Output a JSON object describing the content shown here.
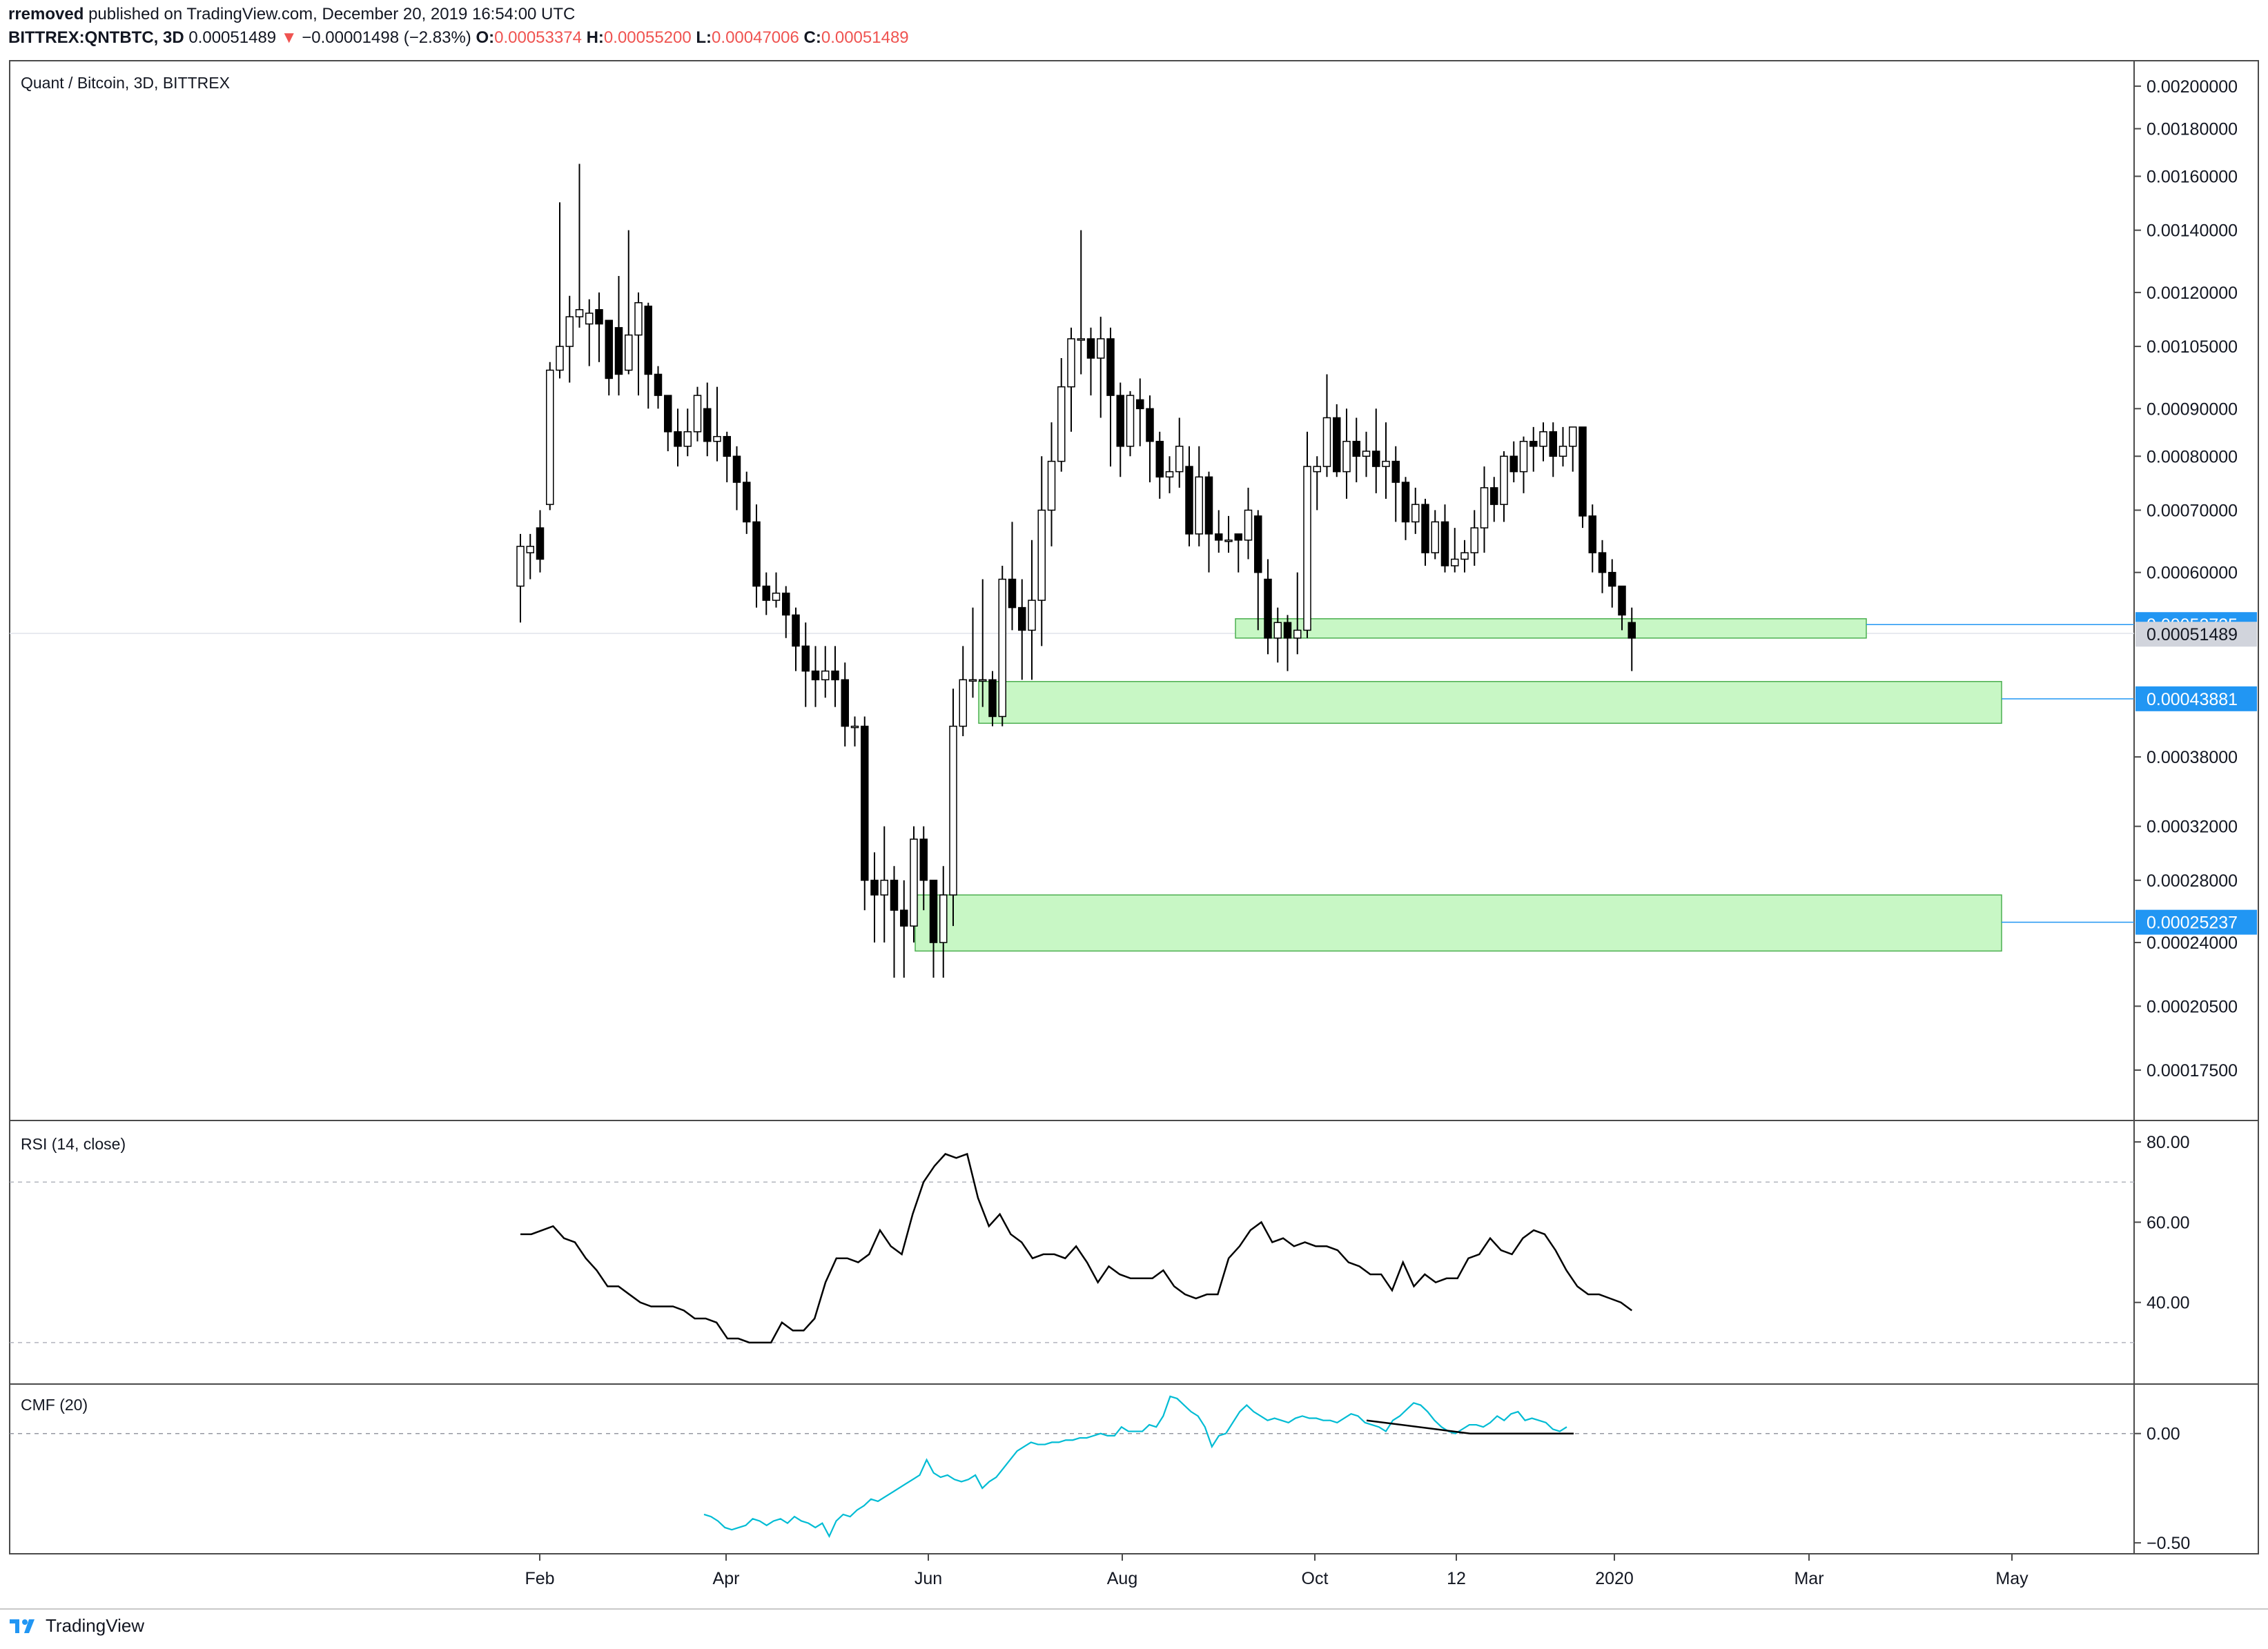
{
  "header": {
    "author": "rremoved",
    "published_text": "published on TradingView.com, December 20, 2019 16:54:00 UTC",
    "symbol": "BITTREX:QNTBTC, 3D",
    "last": "0.00051489",
    "change_arrow": "▼",
    "change": "−0.00001498 (−2.83%)",
    "o_label": "O:",
    "o_value": "0.00053374",
    "h_label": "H:",
    "h_value": "0.00055200",
    "l_label": "L:",
    "l_value": "0.00047006",
    "c_label": "C:",
    "c_value": "0.00051489"
  },
  "footer": {
    "brand": "TradingView",
    "logo_icon": "tradingview-logo-icon"
  },
  "colors": {
    "up": "#ffffff",
    "down": "#000000",
    "zone_fill": "#c8f7c5",
    "zone_stroke": "#4caf50",
    "level_line": "#2196f3",
    "badge": "#2196f3",
    "current_badge": "#d1d4dc",
    "rsi_line": "#000000",
    "cmf_line": "#00bcd4"
  },
  "chart_data": [
    {
      "type": "candlestick",
      "title": "Quant / Bitcoin, 3D, BITTREX",
      "scale": "log",
      "ylim": [
        0.000155,
        0.00213
      ],
      "y_ticks": [
        "0.00200000",
        "0.00180000",
        "0.00160000",
        "0.00140000",
        "0.00120000",
        "0.00105000",
        "0.00090000",
        "0.00080000",
        "0.00070000",
        "0.00060000",
        "0.00038000",
        "0.00032000",
        "0.00028000",
        "0.00024000",
        "0.00020500",
        "0.00017500"
      ],
      "x_ticks": [
        "Feb",
        "Apr",
        "Jun",
        "Aug",
        "Oct",
        "12",
        "2020",
        "Mar",
        "May"
      ],
      "price_labels": [
        {
          "value": "0.00052735",
          "style": "level"
        },
        {
          "value": "0.00051489",
          "style": "current"
        },
        {
          "value": "0.00043881",
          "style": "level"
        },
        {
          "value": "0.00025237",
          "style": "level"
        }
      ],
      "zones": [
        {
          "top": 0.000535,
          "bottom": 0.00051,
          "level": 0.00052735
        },
        {
          "top": 0.000458,
          "bottom": 0.000413,
          "level": 0.00043881
        },
        {
          "top": 0.00027,
          "bottom": 0.000235,
          "level": 0.00025237
        }
      ],
      "candles": [
        [
          0.00058,
          0.00064,
          0.00066,
          0.00053
        ],
        [
          0.00063,
          0.00064,
          0.00066,
          0.00059
        ],
        [
          0.00067,
          0.00062,
          0.0007,
          0.0006
        ],
        [
          0.00071,
          0.00099,
          0.00101,
          0.0007
        ],
        [
          0.00099,
          0.00105,
          0.0015,
          0.00097
        ],
        [
          0.00105,
          0.00113,
          0.00119,
          0.00096
        ],
        [
          0.00113,
          0.00115,
          0.00165,
          0.0011
        ],
        [
          0.00111,
          0.00114,
          0.00118,
          0.001
        ],
        [
          0.00115,
          0.00111,
          0.0012,
          0.00101
        ],
        [
          0.00112,
          0.00097,
          0.00111,
          0.00093
        ],
        [
          0.0011,
          0.00098,
          0.00125,
          0.00093
        ],
        [
          0.00099,
          0.00108,
          0.0014,
          0.00098
        ],
        [
          0.00108,
          0.00117,
          0.0012,
          0.00093
        ],
        [
          0.00116,
          0.00098,
          0.00117,
          0.0009
        ],
        [
          0.00098,
          0.00093,
          0.001,
          0.0009
        ],
        [
          0.00093,
          0.00085,
          0.00093,
          0.00081
        ],
        [
          0.00085,
          0.00082,
          0.0009,
          0.00078
        ],
        [
          0.00082,
          0.00085,
          0.0009,
          0.0008
        ],
        [
          0.00085,
          0.00093,
          0.00095,
          0.00083
        ],
        [
          0.0009,
          0.00083,
          0.00096,
          0.0008
        ],
        [
          0.00083,
          0.00084,
          0.00095,
          0.00079
        ],
        [
          0.00084,
          0.0008,
          0.00085,
          0.00075
        ],
        [
          0.0008,
          0.00075,
          0.00082,
          0.0007
        ],
        [
          0.00075,
          0.00068,
          0.00077,
          0.00066
        ],
        [
          0.00068,
          0.00058,
          0.00071,
          0.00055
        ],
        [
          0.00058,
          0.00056,
          0.0006,
          0.00054
        ],
        [
          0.00056,
          0.00057,
          0.0006,
          0.00055
        ],
        [
          0.00057,
          0.00054,
          0.00058,
          0.00051
        ],
        [
          0.00054,
          0.0005,
          0.00055,
          0.00047
        ],
        [
          0.0005,
          0.00047,
          0.00053,
          0.00043
        ],
        [
          0.00047,
          0.00046,
          0.0005,
          0.00043
        ],
        [
          0.00046,
          0.00047,
          0.0005,
          0.00044
        ],
        [
          0.00047,
          0.00046,
          0.0005,
          0.00043
        ],
        [
          0.00046,
          0.00041,
          0.00048,
          0.00039
        ],
        [
          0.00041,
          0.00041,
          0.00042,
          0.00039
        ],
        [
          0.00041,
          0.00028,
          0.00042,
          0.00026
        ],
        [
          0.00028,
          0.00027,
          0.0003,
          0.00024
        ],
        [
          0.00027,
          0.00028,
          0.00032,
          0.00024
        ],
        [
          0.00028,
          0.00026,
          0.00029,
          0.00022
        ],
        [
          0.00026,
          0.00025,
          0.00028,
          0.00022
        ],
        [
          0.00025,
          0.00031,
          0.00032,
          0.00024
        ],
        [
          0.00031,
          0.00028,
          0.00032,
          0.00026
        ],
        [
          0.00028,
          0.00024,
          0.00028,
          0.00022
        ],
        [
          0.00024,
          0.00027,
          0.00029,
          0.00022
        ],
        [
          0.00027,
          0.00041,
          0.00045,
          0.00025
        ],
        [
          0.00041,
          0.00046,
          0.0005,
          0.0004
        ],
        [
          0.00046,
          0.00046,
          0.00055,
          0.00044
        ],
        [
          0.00046,
          0.00046,
          0.00059,
          0.00043
        ],
        [
          0.00046,
          0.00042,
          0.00047,
          0.00041
        ],
        [
          0.00042,
          0.00059,
          0.00061,
          0.00041
        ],
        [
          0.00059,
          0.00055,
          0.00068,
          0.00052
        ],
        [
          0.00055,
          0.00052,
          0.00059,
          0.00046
        ],
        [
          0.00052,
          0.00056,
          0.00065,
          0.00046
        ],
        [
          0.00056,
          0.0007,
          0.0008,
          0.0005
        ],
        [
          0.0007,
          0.00079,
          0.00087,
          0.00064
        ],
        [
          0.00079,
          0.00095,
          0.00102,
          0.00077
        ],
        [
          0.00095,
          0.00107,
          0.0011,
          0.00085
        ],
        [
          0.00107,
          0.00107,
          0.0014,
          0.00098
        ],
        [
          0.00107,
          0.00102,
          0.0011,
          0.00093
        ],
        [
          0.00102,
          0.00107,
          0.00113,
          0.00088
        ],
        [
          0.00107,
          0.00093,
          0.0011,
          0.00078
        ],
        [
          0.00093,
          0.00082,
          0.00096,
          0.00076
        ],
        [
          0.00082,
          0.00093,
          0.00094,
          0.0008
        ],
        [
          0.00092,
          0.0009,
          0.00097,
          0.00082
        ],
        [
          0.0009,
          0.00083,
          0.00093,
          0.00075
        ],
        [
          0.00083,
          0.00076,
          0.00085,
          0.00072
        ],
        [
          0.00076,
          0.00077,
          0.0008,
          0.00073
        ],
        [
          0.00077,
          0.00082,
          0.00088,
          0.00074
        ],
        [
          0.00078,
          0.00066,
          0.00082,
          0.00064
        ],
        [
          0.00066,
          0.00076,
          0.00082,
          0.00064
        ],
        [
          0.00076,
          0.00066,
          0.00077,
          0.0006
        ],
        [
          0.00066,
          0.00065,
          0.0007,
          0.00063
        ],
        [
          0.00065,
          0.00065,
          0.00069,
          0.00063
        ],
        [
          0.00066,
          0.00065,
          0.00066,
          0.0006
        ],
        [
          0.00065,
          0.0007,
          0.00074,
          0.00062
        ],
        [
          0.00069,
          0.0006,
          0.0007,
          0.00052
        ],
        [
          0.00059,
          0.00051,
          0.00062,
          0.00049
        ],
        [
          0.00051,
          0.00053,
          0.00055,
          0.00048
        ],
        [
          0.00053,
          0.00051,
          0.00054,
          0.00047
        ],
        [
          0.00051,
          0.00052,
          0.0006,
          0.00049
        ],
        [
          0.00052,
          0.00078,
          0.00085,
          0.00051
        ],
        [
          0.00077,
          0.00078,
          0.0008,
          0.0007
        ],
        [
          0.00078,
          0.00088,
          0.00098,
          0.00076
        ],
        [
          0.00088,
          0.00077,
          0.00091,
          0.00076
        ],
        [
          0.00077,
          0.00083,
          0.0009,
          0.00072
        ],
        [
          0.00083,
          0.0008,
          0.00088,
          0.00075
        ],
        [
          0.0008,
          0.00081,
          0.00085,
          0.00076
        ],
        [
          0.00081,
          0.00078,
          0.0009,
          0.00073
        ],
        [
          0.00078,
          0.00079,
          0.00087,
          0.00072
        ],
        [
          0.00079,
          0.00075,
          0.00082,
          0.00068
        ],
        [
          0.00075,
          0.00068,
          0.00076,
          0.00065
        ],
        [
          0.00068,
          0.00071,
          0.00074,
          0.00066
        ],
        [
          0.00071,
          0.00063,
          0.00072,
          0.00061
        ],
        [
          0.00063,
          0.00068,
          0.0007,
          0.00062
        ],
        [
          0.00068,
          0.00061,
          0.00071,
          0.0006
        ],
        [
          0.00061,
          0.00062,
          0.00067,
          0.0006
        ],
        [
          0.00062,
          0.00063,
          0.00065,
          0.0006
        ],
        [
          0.00063,
          0.00067,
          0.0007,
          0.00061
        ],
        [
          0.00067,
          0.00074,
          0.00078,
          0.00063
        ],
        [
          0.00074,
          0.00071,
          0.00076,
          0.00068
        ],
        [
          0.00071,
          0.0008,
          0.00081,
          0.00068
        ],
        [
          0.0008,
          0.00077,
          0.00083,
          0.00075
        ],
        [
          0.00077,
          0.00083,
          0.00084,
          0.00073
        ],
        [
          0.00083,
          0.00082,
          0.00086,
          0.00077
        ],
        [
          0.00082,
          0.00085,
          0.00087,
          0.00079
        ],
        [
          0.00085,
          0.0008,
          0.00087,
          0.00076
        ],
        [
          0.0008,
          0.00082,
          0.00086,
          0.00078
        ],
        [
          0.00082,
          0.00086,
          0.00086,
          0.00077
        ],
        [
          0.00086,
          0.00069,
          0.00086,
          0.00067
        ],
        [
          0.00069,
          0.00063,
          0.00071,
          0.0006
        ],
        [
          0.00063,
          0.0006,
          0.00065,
          0.00057
        ],
        [
          0.0006,
          0.00058,
          0.00062,
          0.00055
        ],
        [
          0.00058,
          0.00054,
          0.00058,
          0.00052
        ],
        [
          0.00053,
          0.00051,
          0.00055,
          0.00047
        ]
      ]
    },
    {
      "type": "line",
      "title": "RSI (14, close)",
      "ylim": [
        20,
        85
      ],
      "y_ticks": [
        "80.00",
        "60.00",
        "40.00"
      ],
      "bands": [
        70,
        30
      ],
      "values": [
        57,
        57,
        58,
        59,
        56,
        55,
        51,
        48,
        44,
        44,
        42,
        40,
        39,
        39,
        39,
        38,
        36,
        36,
        35,
        31,
        31,
        30,
        30,
        30,
        35,
        33,
        33,
        36,
        45,
        51,
        51,
        50,
        52,
        58,
        54,
        52,
        62,
        70,
        74,
        77,
        76,
        77,
        66,
        59,
        62,
        57,
        55,
        51,
        52,
        52,
        51,
        54,
        50,
        45,
        49,
        47,
        46,
        46,
        46,
        48,
        44,
        42,
        41,
        42,
        42,
        51,
        54,
        58,
        60,
        55,
        56,
        54,
        55,
        54,
        54,
        53,
        50,
        49,
        47,
        47,
        43,
        50,
        44,
        47,
        45,
        46,
        46,
        51,
        52,
        56,
        53,
        52,
        56,
        58,
        57,
        53,
        48,
        44,
        42,
        42,
        41,
        40,
        38
      ]
    },
    {
      "type": "line",
      "title": "CMF (20)",
      "ylim": [
        -0.55,
        0.22
      ],
      "y_ticks": [
        "0.00",
        "−0.50"
      ],
      "zero_line": 0,
      "values": [
        -0.37,
        -0.38,
        -0.4,
        -0.43,
        -0.44,
        -0.43,
        -0.42,
        -0.39,
        -0.4,
        -0.42,
        -0.4,
        -0.39,
        -0.41,
        -0.38,
        -0.4,
        -0.41,
        -0.43,
        -0.41,
        -0.47,
        -0.4,
        -0.37,
        -0.38,
        -0.35,
        -0.33,
        -0.3,
        -0.31,
        -0.29,
        -0.27,
        -0.25,
        -0.23,
        -0.21,
        -0.19,
        -0.12,
        -0.18,
        -0.2,
        -0.19,
        -0.21,
        -0.22,
        -0.21,
        -0.19,
        -0.25,
        -0.22,
        -0.2,
        -0.16,
        -0.12,
        -0.08,
        -0.06,
        -0.04,
        -0.05,
        -0.05,
        -0.04,
        -0.04,
        -0.03,
        -0.03,
        -0.02,
        -0.02,
        -0.01,
        0.0,
        -0.01,
        -0.01,
        0.03,
        0.01,
        0.01,
        0.01,
        0.04,
        0.03,
        0.08,
        0.17,
        0.16,
        0.13,
        0.1,
        0.08,
        0.03,
        -0.06,
        -0.01,
        0.0,
        0.05,
        0.1,
        0.13,
        0.1,
        0.08,
        0.06,
        0.07,
        0.06,
        0.05,
        0.07,
        0.08,
        0.07,
        0.07,
        0.06,
        0.06,
        0.05,
        0.07,
        0.09,
        0.08,
        0.05,
        0.04,
        0.03,
        0.01,
        0.06,
        0.08,
        0.11,
        0.14,
        0.13,
        0.1,
        0.06,
        0.03,
        0.01,
        0.0,
        0.02,
        0.04,
        0.04,
        0.03,
        0.05,
        0.08,
        0.06,
        0.09,
        0.1,
        0.06,
        0.07,
        0.06,
        0.05,
        0.02,
        0.01,
        0.03
      ],
      "trend_lines": [
        {
          "x0": 84,
          "y0": 0.06,
          "x1": 96,
          "y1": 0.0
        },
        {
          "x0": 96,
          "y0": 0.0,
          "x1": 108,
          "y1": 0.0
        }
      ]
    }
  ]
}
